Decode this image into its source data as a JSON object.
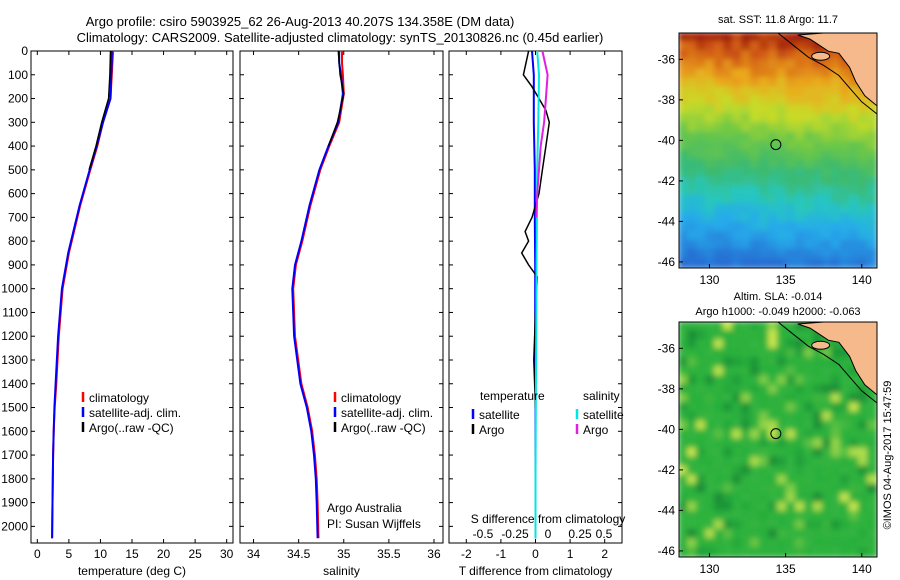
{
  "header": {
    "line1": "Argo profile: csiro 5903925_62 26-Aug-2013 40.207S 134.358E (DM data)",
    "line2": "Climatology: CARS2009. Satellite-adjusted climatology: synTS_20130826.nc (0.45d earlier)"
  },
  "credit": "©IMOS 04-Aug-2017 15:47:59",
  "colors": {
    "climatology": "#ff0000",
    "satellite": "#0000ff",
    "argo": "#000000",
    "satellite_s": "#00e5e5",
    "argo_s": "#e020e0",
    "land": "#f5b98c"
  },
  "chart_data": [
    {
      "type": "line",
      "id": "temperature",
      "xlabel": "temperature (deg C)",
      "xlim": [
        -1,
        31
      ],
      "xticks": [
        0,
        5,
        10,
        15,
        20,
        25,
        30
      ],
      "ylim": [
        2070,
        0
      ],
      "yticks": [
        0,
        100,
        200,
        300,
        400,
        500,
        600,
        700,
        800,
        900,
        1000,
        1100,
        1200,
        1300,
        1400,
        1500,
        1600,
        1700,
        1800,
        1900,
        2000
      ],
      "y_inverted": true,
      "legend": {
        "position": "lower-center",
        "entries": [
          "climatology",
          "satellite-adj. clim.",
          "Argo(..raw -QC)"
        ]
      },
      "series": [
        {
          "name": "climatology",
          "color": "#ff0000",
          "x": [
            12.0,
            11.9,
            11.8,
            11.6,
            10.4,
            9.5,
            8.4,
            6.8,
            5.0,
            4.0,
            3.4,
            3.0,
            2.75,
            2.6,
            2.5,
            2.45,
            2.4,
            2.35
          ],
          "y": [
            0,
            50,
            100,
            200,
            300,
            400,
            500,
            650,
            850,
            1000,
            1200,
            1400,
            1500,
            1600,
            1700,
            1800,
            1900,
            2050
          ]
        },
        {
          "name": "satellite-adj. clim.",
          "color": "#0000ff",
          "x": [
            11.8,
            11.8,
            11.7,
            11.6,
            10.4,
            9.4,
            8.3,
            6.7,
            4.9,
            3.9,
            3.3,
            2.9,
            2.7,
            2.6,
            2.5,
            2.45,
            2.4,
            2.35
          ],
          "y": [
            0,
            50,
            100,
            200,
            300,
            400,
            500,
            650,
            850,
            1000,
            1200,
            1400,
            1500,
            1600,
            1700,
            1800,
            1900,
            2050
          ]
        },
        {
          "name": "Argo(..raw -QC)",
          "color": "#000000",
          "x": [
            11.6,
            11.5,
            11.3,
            10.2,
            9.3,
            8.2
          ],
          "y": [
            0,
            100,
            200,
            300,
            400,
            500
          ]
        }
      ]
    },
    {
      "type": "line",
      "id": "salinity",
      "xlabel": "salinity",
      "xlim": [
        33.85,
        36.1
      ],
      "xticks": [
        34,
        34.5,
        35,
        35.5,
        36
      ],
      "ylim": [
        2070,
        0
      ],
      "y_inverted": true,
      "legend": {
        "position": "lower-center",
        "entries": [
          "climatology",
          "satellite-adj. clim.",
          "Argo(..raw -QC)"
        ]
      },
      "annotation": [
        "Argo Australia",
        "PI: Susan Wijffels"
      ],
      "series": [
        {
          "name": "climatology",
          "color": "#ff0000",
          "x": [
            34.98,
            34.98,
            34.99,
            35.0,
            34.95,
            34.84,
            34.74,
            34.63,
            34.54,
            34.47,
            34.44,
            34.46,
            34.53,
            34.6,
            34.65,
            34.68,
            34.7,
            34.71,
            34.72
          ],
          "y": [
            0,
            50,
            100,
            180,
            300,
            400,
            500,
            650,
            800,
            900,
            1000,
            1200,
            1400,
            1500,
            1600,
            1700,
            1800,
            1900,
            2050
          ]
        },
        {
          "name": "satellite-adj. clim.",
          "color": "#0000ff",
          "x": [
            34.95,
            34.95,
            34.97,
            34.99,
            34.94,
            34.83,
            34.73,
            34.62,
            34.53,
            34.46,
            34.43,
            34.45,
            34.52,
            34.59,
            34.64,
            34.67,
            34.69,
            34.7,
            34.71
          ],
          "y": [
            0,
            50,
            100,
            180,
            300,
            400,
            500,
            650,
            800,
            900,
            1000,
            1200,
            1400,
            1500,
            1600,
            1700,
            1800,
            1900,
            2050
          ]
        },
        {
          "name": "Argo(..raw -QC)",
          "color": "#000000",
          "x": [
            34.94,
            34.95,
            34.96,
            35.0,
            34.93,
            34.83
          ],
          "y": [
            0,
            50,
            100,
            180,
            300,
            400
          ]
        }
      ]
    },
    {
      "type": "line",
      "id": "differences",
      "xlabel": "T difference from climatology",
      "top_label": "S difference from climatology",
      "xlim": [
        -2.5,
        2.5
      ],
      "xticks": [
        -2,
        -1,
        0,
        1,
        2
      ],
      "xtick_labels": [
        "-2",
        "-1",
        "0",
        "1",
        "2"
      ],
      "top_xticks_labels": [
        "-0.5",
        "-0.25",
        "0",
        "0.25",
        "0.5"
      ],
      "ylim": [
        2070,
        0
      ],
      "y_inverted": true,
      "legend": {
        "position": "center",
        "headers": [
          "temperature",
          "salinity"
        ],
        "entries": [
          "satellite",
          "Argo",
          "satellite",
          "Argo"
        ]
      },
      "series": [
        {
          "name": "satellite",
          "color": "#0000ff",
          "x": [
            -0.1,
            -0.05,
            -0.05,
            -0.02,
            -0.02,
            -0.01,
            -0.01,
            0,
            0,
            0
          ],
          "y": [
            0,
            100,
            300,
            500,
            700,
            900,
            1200,
            1500,
            1800,
            2050
          ]
        },
        {
          "name": "Argo",
          "color": "#000000",
          "x": [
            -0.2,
            -0.35,
            -0.1,
            0.3,
            0.4,
            0.3,
            0.2,
            0.1,
            -0.1,
            -0.3,
            -0.2,
            -0.4,
            -0.2,
            0.05,
            0,
            -0.05,
            0
          ],
          "y": [
            0,
            100,
            150,
            250,
            300,
            400,
            500,
            600,
            700,
            760,
            800,
            850,
            900,
            950,
            1100,
            1300,
            1500
          ]
        },
        {
          "name": "satellite",
          "color": "#00e5e5",
          "x": [
            0.05,
            0.1,
            0.08,
            0.05,
            0.04,
            0.03,
            0.02,
            0.01,
            0,
            0
          ],
          "y": [
            0,
            100,
            300,
            500,
            700,
            900,
            1200,
            1500,
            1800,
            2050
          ]
        },
        {
          "name": "Argo",
          "color": "#e020e0",
          "x": [
            0.2,
            0.35,
            0.3,
            0.25,
            0.15,
            0.1,
            0.05,
            0.02
          ],
          "y": [
            0,
            100,
            200,
            300,
            400,
            500,
            600,
            700
          ]
        }
      ]
    },
    {
      "type": "heatmap",
      "id": "sst-map",
      "title": "sat. SST: 11.8  Argo: 11.7",
      "xlim": [
        128,
        141
      ],
      "ylim": [
        -46.3,
        -34.7
      ],
      "xticks": [
        130,
        135,
        140
      ],
      "yticks": [
        -36,
        -38,
        -40,
        -42,
        -44,
        -46
      ],
      "marker": {
        "lon": 134.36,
        "lat": -40.21
      }
    },
    {
      "type": "heatmap",
      "id": "sla-map",
      "title_lines": [
        "Altim. SLA: -0.014",
        "Argo h1000: -0.049 h2000: -0.063"
      ],
      "xlim": [
        128,
        141
      ],
      "ylim": [
        -46.3,
        -34.7
      ],
      "xticks": [
        130,
        135,
        140
      ],
      "yticks": [
        -36,
        -38,
        -40,
        -42,
        -44,
        -46
      ],
      "marker": {
        "lon": 134.36,
        "lat": -40.21
      }
    }
  ]
}
